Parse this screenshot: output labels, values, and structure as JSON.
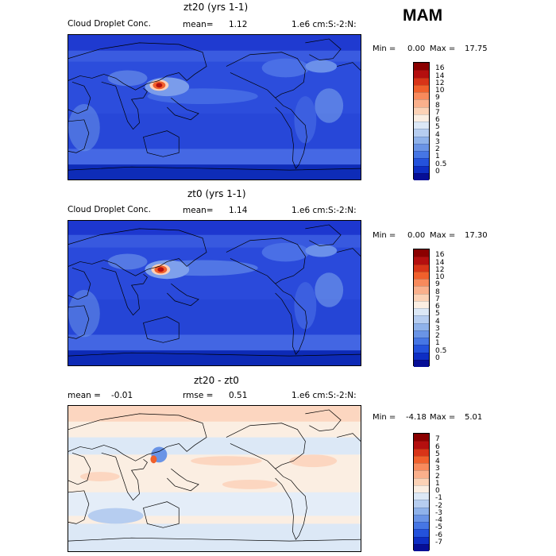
{
  "season": "MAM",
  "panels": [
    {
      "title": "zt20 (yrs 1-1)",
      "field": "Cloud Droplet Conc.",
      "mean_label": "mean=",
      "mean_value": "1.12",
      "units": "1.e6 cm:S:-2:N:",
      "min_label": "Min =",
      "min_value": "0.00",
      "max_label": "Max =",
      "max_value": "17.75",
      "colorbar_ticks": [
        "16",
        "14",
        "12",
        "10",
        "9",
        "8",
        "7",
        "6",
        "5",
        "4",
        "3",
        "2",
        "1",
        "0.5",
        "0"
      ],
      "colorbar_colors": [
        "#8b0000",
        "#b40f0f",
        "#d83418",
        "#f0602c",
        "#f88a5c",
        "#fab08c",
        "#fcd2b6",
        "#fbeee2",
        "#dce8f6",
        "#b6cdf0",
        "#8fb2ea",
        "#6a94e6",
        "#4676e4",
        "#2452dc",
        "#0e2ec4",
        "#060e96"
      ]
    },
    {
      "title": "zt0 (yrs 1-1)",
      "field": "Cloud Droplet Conc.",
      "mean_label": "mean=",
      "mean_value": "1.14",
      "units": "1.e6 cm:S:-2:N:",
      "min_label": "Min =",
      "min_value": "0.00",
      "max_label": "Max =",
      "max_value": "17.30",
      "colorbar_ticks": [
        "16",
        "14",
        "12",
        "10",
        "9",
        "8",
        "7",
        "6",
        "5",
        "4",
        "3",
        "2",
        "1",
        "0.5",
        "0"
      ],
      "colorbar_colors": [
        "#8b0000",
        "#b40f0f",
        "#d83418",
        "#f0602c",
        "#f88a5c",
        "#fab08c",
        "#fcd2b6",
        "#fbeee2",
        "#dce8f6",
        "#b6cdf0",
        "#8fb2ea",
        "#6a94e6",
        "#4676e4",
        "#2452dc",
        "#0e2ec4",
        "#060e96"
      ]
    },
    {
      "title": "zt20 - zt0",
      "mean_label": "mean =",
      "mean_value": "-0.01",
      "rmse_label": "rmse =",
      "rmse_value": "0.51",
      "units": "1.e6 cm:S:-2:N:",
      "min_label": "Min =",
      "min_value": "-4.18",
      "max_label": "Max =",
      "max_value": "5.01",
      "colorbar_ticks": [
        "7",
        "6",
        "5",
        "4",
        "3",
        "2",
        "1",
        "0",
        "-1",
        "-2",
        "-3",
        "-4",
        "-5",
        "-6",
        "-7"
      ],
      "colorbar_colors": [
        "#8b0000",
        "#b40f0f",
        "#d83418",
        "#f0602c",
        "#f88a5c",
        "#fab08c",
        "#fcd2b6",
        "#fbeee2",
        "#dce8f6",
        "#b6cdf0",
        "#8fb2ea",
        "#6a94e6",
        "#4676e4",
        "#2452dc",
        "#0e2ec4",
        "#060e96"
      ]
    }
  ]
}
